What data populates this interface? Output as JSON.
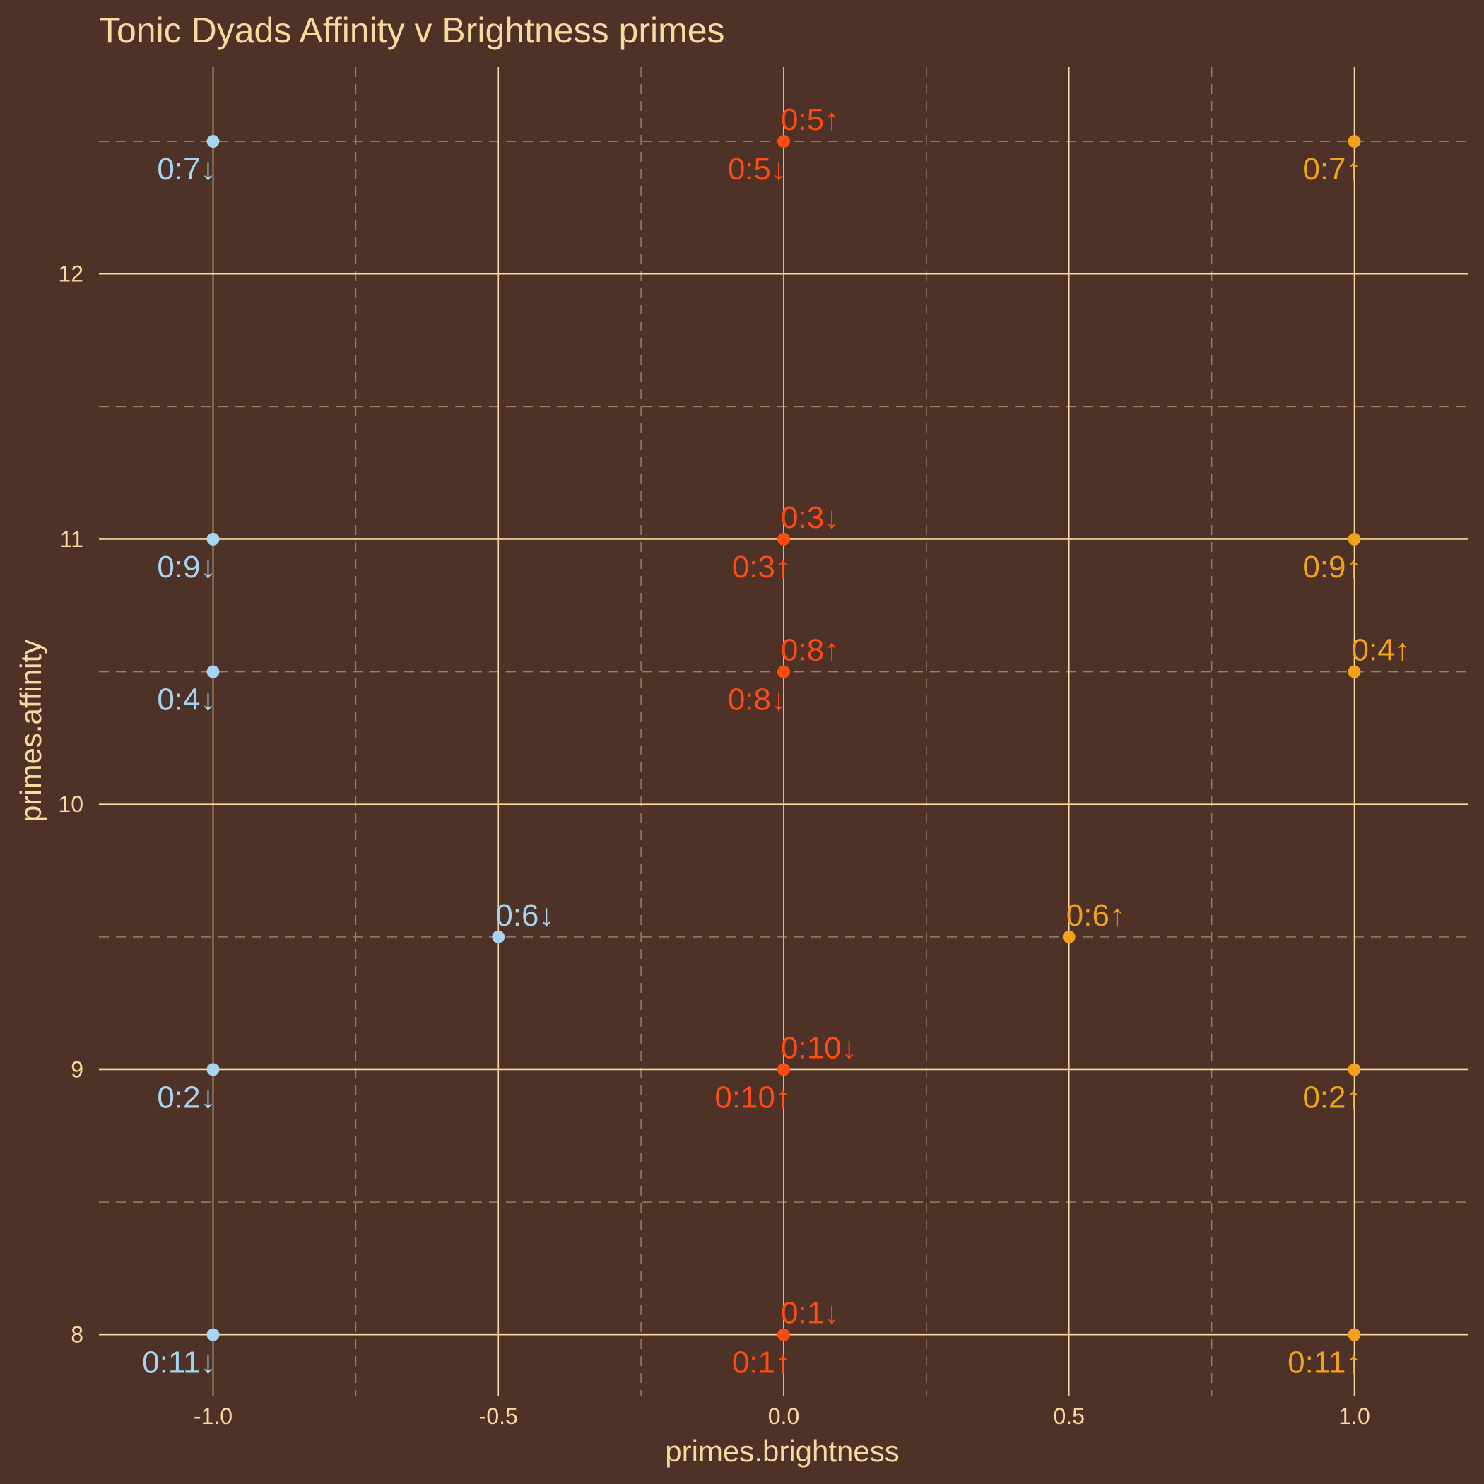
{
  "chart_data": {
    "type": "scatter",
    "title": "Tonic Dyads Affinity v Brightness primes",
    "xlabel": "primes.brightness",
    "ylabel": "primes.affinity",
    "xlim": [
      -1.2,
      1.2
    ],
    "ylim": [
      7.77,
      12.78
    ],
    "x_ticks": [
      -1.0,
      -0.5,
      0.0,
      0.5,
      1.0
    ],
    "x_tick_labels": [
      "-1.0",
      "-0.5",
      "0.0",
      "0.5",
      "1.0"
    ],
    "y_ticks": [
      8,
      9,
      10,
      11,
      12
    ],
    "y_tick_labels": [
      "8",
      "9",
      "10",
      "11",
      "12"
    ],
    "grid": true,
    "legend": "none",
    "colors": {
      "background": "#4e3227",
      "text": "#f5dba0",
      "grid_major": "#f5dba0",
      "grid_minor": "#9a8060",
      "series_down": "#a6d5f2",
      "series_zero": "#ff4a12",
      "series_up": "#f2a21a"
    },
    "points": [
      {
        "x": -1.0,
        "y": 12.5,
        "label": "0:7↓",
        "color": "#a6d5f2",
        "pos": "below"
      },
      {
        "x": -1.0,
        "y": 11.0,
        "label": "0:9↓",
        "color": "#a6d5f2",
        "pos": "below"
      },
      {
        "x": -1.0,
        "y": 10.5,
        "label": "0:4↓",
        "color": "#a6d5f2",
        "pos": "below"
      },
      {
        "x": -1.0,
        "y": 9.0,
        "label": "0:2↓",
        "color": "#a6d5f2",
        "pos": "below"
      },
      {
        "x": -1.0,
        "y": 8.0,
        "label": "0:11↓",
        "color": "#a6d5f2",
        "pos": "below"
      },
      {
        "x": -0.5,
        "y": 9.5,
        "label": "0:6↓",
        "color": "#a6d5f2",
        "pos": "above"
      },
      {
        "x": 0.0,
        "y": 12.5,
        "label": "0:5↑",
        "color": "#ff4a12",
        "pos": "above"
      },
      {
        "x": 0.0,
        "y": 12.5,
        "label": "0:5↓",
        "color": "#ff4a12",
        "pos": "below"
      },
      {
        "x": 0.0,
        "y": 11.0,
        "label": "0:3↓",
        "color": "#ff4a12",
        "pos": "above"
      },
      {
        "x": 0.0,
        "y": 11.0,
        "label": "0:3↑",
        "color": "#ff4a12",
        "pos": "below"
      },
      {
        "x": 0.0,
        "y": 10.5,
        "label": "0:8↑",
        "color": "#ff4a12",
        "pos": "above"
      },
      {
        "x": 0.0,
        "y": 10.5,
        "label": "0:8↓",
        "color": "#ff4a12",
        "pos": "below"
      },
      {
        "x": 0.0,
        "y": 9.0,
        "label": "0:10↓",
        "color": "#ff4a12",
        "pos": "above"
      },
      {
        "x": 0.0,
        "y": 9.0,
        "label": "0:10↑",
        "color": "#ff4a12",
        "pos": "below"
      },
      {
        "x": 0.0,
        "y": 8.0,
        "label": "0:1↓",
        "color": "#ff4a12",
        "pos": "above"
      },
      {
        "x": 0.0,
        "y": 8.0,
        "label": "0:1↑",
        "color": "#ff4a12",
        "pos": "below"
      },
      {
        "x": 0.5,
        "y": 9.5,
        "label": "0:6↑",
        "color": "#f2a21a",
        "pos": "above"
      },
      {
        "x": 1.0,
        "y": 12.5,
        "label": "0:7↑",
        "color": "#f2a21a",
        "pos": "below"
      },
      {
        "x": 1.0,
        "y": 11.0,
        "label": "0:9↑",
        "color": "#f2a21a",
        "pos": "below"
      },
      {
        "x": 1.0,
        "y": 10.5,
        "label": "0:4↑",
        "color": "#f2a21a",
        "pos": "above"
      },
      {
        "x": 1.0,
        "y": 9.0,
        "label": "0:2↑",
        "color": "#f2a21a",
        "pos": "below"
      },
      {
        "x": 1.0,
        "y": 8.0,
        "label": "0:11↑",
        "color": "#f2a21a",
        "pos": "below"
      }
    ]
  }
}
